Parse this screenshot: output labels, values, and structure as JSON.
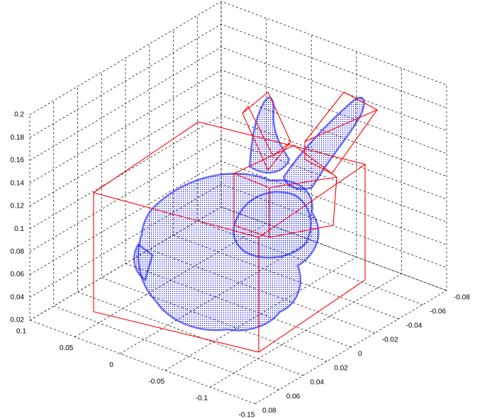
{
  "chart_data": {
    "type": "scatter3d",
    "color": "#0000ff",
    "grid": true,
    "xlim": [
      -0.15,
      0.1
    ],
    "xticks": [
      0.1,
      0.05,
      0,
      -0.05,
      -0.1,
      -0.15
    ],
    "ylim": [
      -0.08,
      0.08
    ],
    "yticks": [
      -0.08,
      -0.06,
      -0.04,
      -0.02,
      0,
      0.02,
      0.04,
      0.06,
      0.08
    ],
    "zlim": [
      0.02,
      0.2
    ],
    "zticks": [
      0.02,
      0.04,
      0.06,
      0.08,
      0.1,
      0.12,
      0.14,
      0.16,
      0.18,
      0.2
    ]
  }
}
